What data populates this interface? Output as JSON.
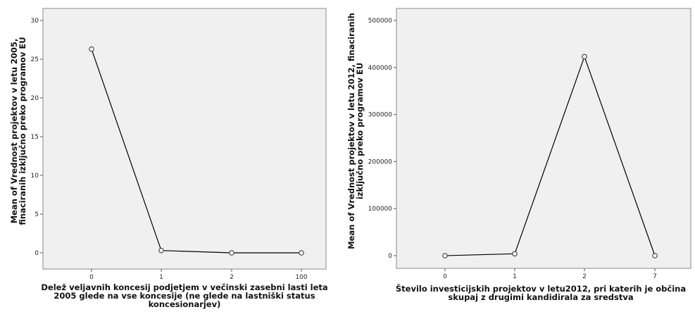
{
  "chart_data": [
    {
      "type": "line",
      "x": [
        "0",
        "1",
        "2",
        "100"
      ],
      "y": [
        26.3,
        0.3,
        0.0,
        0.0
      ],
      "ylim": [
        0,
        30
      ],
      "yticks": [
        0,
        5,
        10,
        15,
        20,
        25,
        30
      ],
      "ylabel_lines": [
        "Mean of Vrednost projektov v letu 2005,",
        "finaciranih izključno preko programov EU"
      ],
      "xlabel_lines": [
        "Delež veljavnih koncesij podjetjem v večinski zasebni lasti leta",
        "2005 glede na vse koncesije (ne glede na lastniški status",
        "koncesionarjev)"
      ],
      "grid": false,
      "plot_background": "#f0f0f0",
      "line_color": "#000000"
    },
    {
      "type": "line",
      "x": [
        "0",
        "1",
        "2",
        "7"
      ],
      "y": [
        0,
        4000,
        423000,
        0
      ],
      "ylim": [
        0,
        500000
      ],
      "yticks": [
        0,
        100000,
        200000,
        300000,
        400000,
        500000
      ],
      "ylabel_lines": [
        "Mean of Vrednost projektov v letu 2012, finaciranih",
        "izključno preko programov EU"
      ],
      "xlabel_lines": [
        "Število investicijskih projektov v letu2012, pri katerih je občina",
        "skupaj z drugimi kandidirala za sredstva"
      ],
      "grid": false,
      "plot_background": "#f0f0f0",
      "line_color": "#000000"
    }
  ]
}
